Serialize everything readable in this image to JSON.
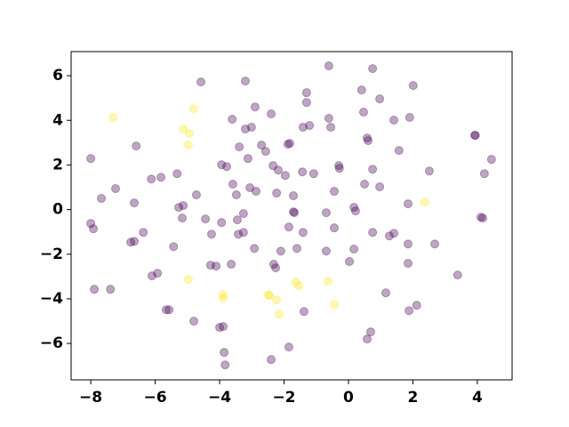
{
  "chart_data": {
    "type": "scatter",
    "xlim": [
      -8.61,
      5.08
    ],
    "ylim": [
      -7.63,
      7.08
    ],
    "xticks": [
      {
        "value": -8,
        "label": "−8"
      },
      {
        "value": -6,
        "label": "−6"
      },
      {
        "value": -4,
        "label": "−4"
      },
      {
        "value": -2,
        "label": "−2"
      },
      0,
      2,
      4
    ],
    "yticks": [
      {
        "value": -6,
        "label": "−6"
      },
      {
        "value": -4,
        "label": "−4"
      },
      {
        "value": -2,
        "label": "−2"
      },
      0,
      2,
      4,
      6
    ],
    "grid": false,
    "series": [
      {
        "color": "#440154",
        "x": [
          -8.0,
          -8.0,
          -7.92,
          -7.89,
          -7.67,
          -7.39,
          -7.23,
          -6.59,
          -6.65,
          -6.76,
          -6.65,
          -6.37,
          -6.12,
          -5.82,
          -6.1,
          -5.93,
          -5.66,
          -5.57,
          -5.43,
          -5.32,
          -5.27,
          -5.13,
          -5.16,
          -4.72,
          -4.8,
          -4.58,
          -4.44,
          -4.25,
          -4.28,
          -4.11,
          -3.94,
          -3.78,
          -3.94,
          -4.0,
          -3.89,
          -3.86,
          -3.83,
          -3.64,
          -3.61,
          -3.59,
          -3.48,
          -3.39,
          -3.45,
          -3.42,
          -3.26,
          -3.26,
          -3.2,
          -3.2,
          -3.12,
          -3.06,
          -3.01,
          -2.9,
          -2.87,
          -2.92,
          -2.7,
          -2.57,
          -2.4,
          -2.34,
          -2.32,
          -2.26,
          -2.23,
          -2.18,
          -2.1,
          -1.96,
          -1.88,
          -1.82,
          -1.85,
          -1.85,
          -1.71,
          -1.71,
          -1.68,
          -1.6,
          -2.4,
          -1.43,
          -1.41,
          -1.41,
          -1.38,
          -1.3,
          -1.3,
          -1.21,
          -1.08,
          -0.69,
          -0.69,
          -0.61,
          -0.61,
          -0.55,
          -0.44,
          -0.44,
          -0.3,
          -0.28,
          0.03,
          0.17,
          0.17,
          0.22,
          0.41,
          0.47,
          0.5,
          0.58,
          0.61,
          0.58,
          0.69,
          0.75,
          0.75,
          0.75,
          0.97,
          0.97,
          1.16,
          1.27,
          1.41,
          1.41,
          1.57,
          1.85,
          1.85,
          1.85,
          1.88,
          1.9,
          2.01,
          2.12,
          2.51,
          2.68,
          3.39,
          3.92,
          3.94,
          4.11,
          4.17,
          4.22,
          4.44
        ],
        "y": [
          2.29,
          -0.62,
          -0.86,
          -3.57,
          0.5,
          -3.57,
          0.94,
          2.85,
          0.3,
          -1.46,
          -1.42,
          -1.02,
          1.37,
          1.45,
          -2.97,
          -2.85,
          -4.49,
          -4.49,
          -1.66,
          1.61,
          0.1,
          0.18,
          -0.38,
          0.66,
          -5.0,
          5.72,
          -0.42,
          -1.1,
          -2.49,
          -2.53,
          2.01,
          1.93,
          -0.58,
          -5.28,
          -5.24,
          -6.4,
          -6.96,
          -2.45,
          4.05,
          1.14,
          0.66,
          2.81,
          -0.46,
          -1.1,
          -0.18,
          -1.02,
          5.76,
          3.61,
          2.29,
          0.98,
          3.69,
          4.6,
          0.82,
          -1.74,
          2.89,
          2.61,
          4.29,
          1.97,
          -2.45,
          -2.61,
          0.74,
          1.77,
          -1.86,
          1.53,
          2.93,
          2.97,
          -0.78,
          -6.16,
          0.62,
          -0.1,
          -0.14,
          -1.74,
          -6.72,
          1.69,
          3.69,
          -1.02,
          -4.57,
          5.24,
          4.8,
          3.77,
          1.61,
          -0.14,
          -1.86,
          6.44,
          4.09,
          3.69,
          0.82,
          -0.82,
          1.97,
          1.85,
          -2.33,
          -1.77,
          0.1,
          -0.06,
          5.36,
          4.37,
          1.14,
          3.21,
          3.09,
          -5.8,
          -5.48,
          6.32,
          1.81,
          -1.02,
          4.96,
          1.02,
          -3.73,
          -1.18,
          -1.06,
          4.01,
          2.65,
          0.26,
          -1.54,
          -2.41,
          -4.53,
          4.13,
          5.56,
          -4.29,
          1.73,
          -1.54,
          -2.93,
          3.33,
          3.33,
          -0.34,
          -0.38,
          1.61,
          2.25
        ]
      },
      {
        "color": "#fde725",
        "x": [
          -7.31,
          -4.8,
          -5.13,
          -4.94,
          -4.97,
          -4.97,
          -3.89,
          -3.89,
          -2.48,
          -2.46,
          -2.23,
          -2.15,
          -1.63,
          -1.54,
          -0.63,
          -0.44,
          2.37
        ],
        "y": [
          4.13,
          4.52,
          3.61,
          3.41,
          2.89,
          -3.13,
          -3.81,
          -3.97,
          -3.81,
          -3.85,
          -4.05,
          -4.69,
          -3.25,
          -3.41,
          -3.21,
          -4.25,
          0.34
        ]
      }
    ]
  }
}
